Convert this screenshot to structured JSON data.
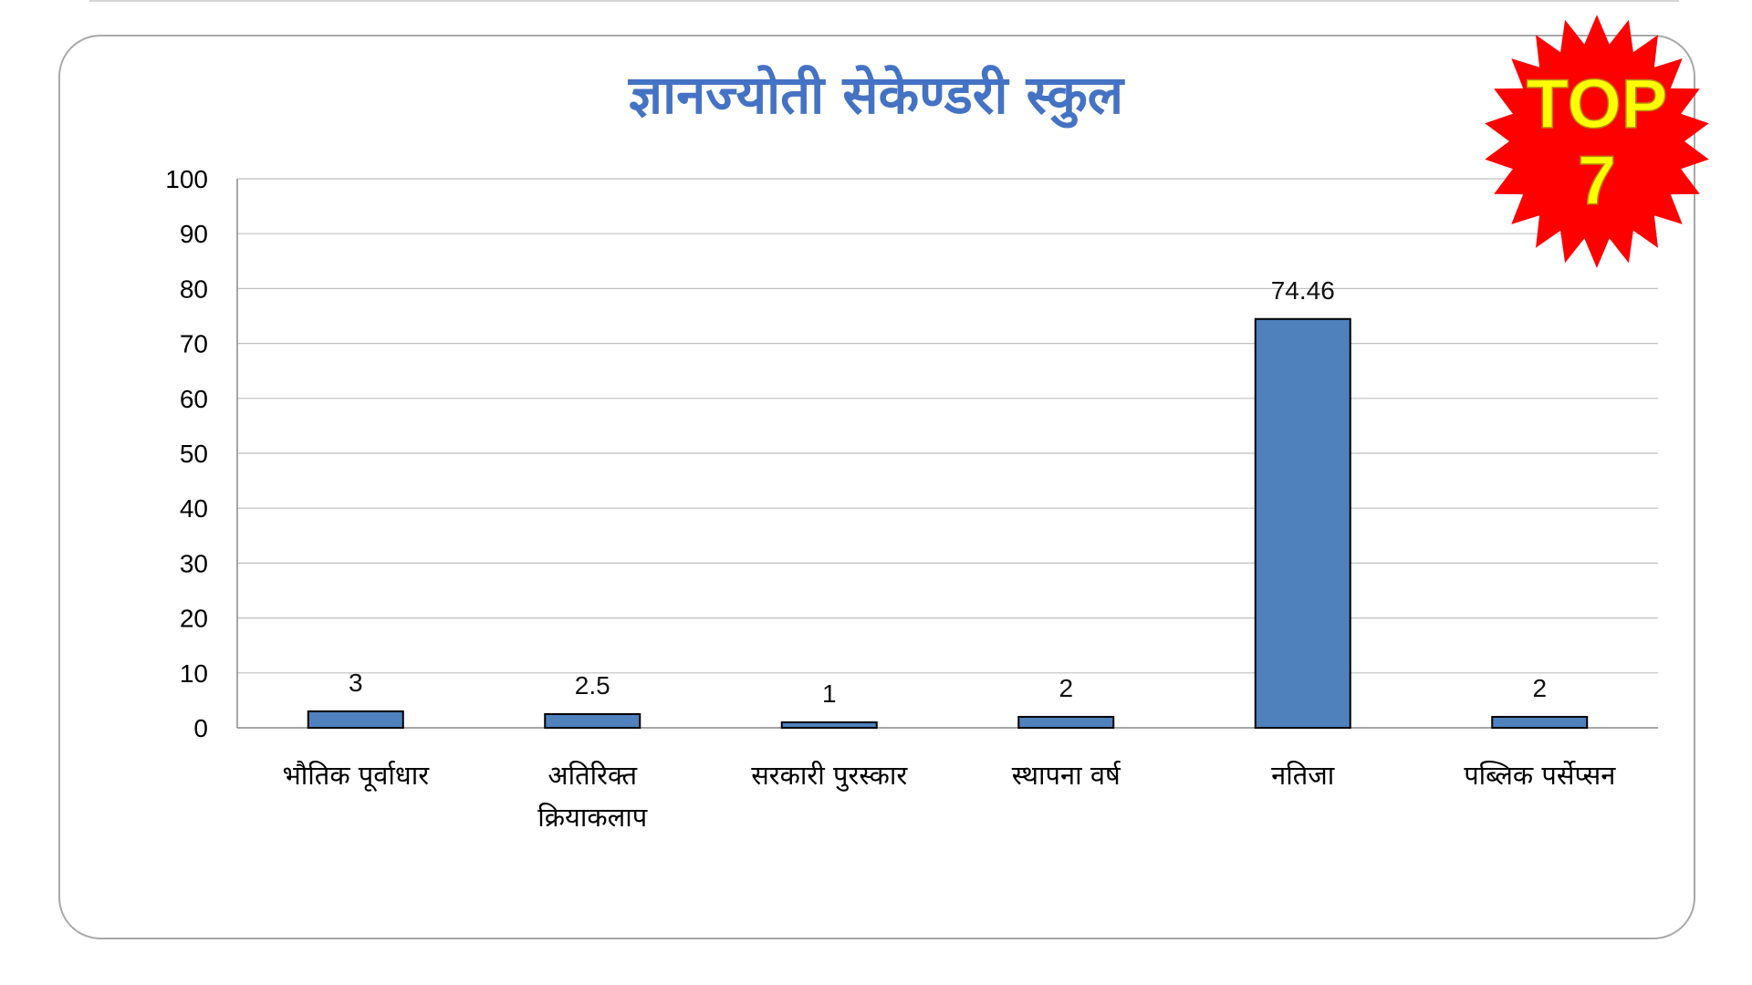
{
  "badge": {
    "line1": "TOP",
    "line2": "7",
    "fill_color": "#ff0000",
    "text_color": "#ffff00"
  },
  "chart_data": {
    "type": "bar",
    "title": "ज्ञानज्योती सेकेण्डरी स्कुल",
    "xlabel": "",
    "ylabel": "",
    "categories": [
      "भौतिक पूर्वाधार",
      "अतिरिक्त क्रियाकलाप",
      "सरकारी पुरस्कार",
      "स्थापना वर्ष",
      "नतिजा",
      "पब्लिक पर्सेप्सन"
    ],
    "category_lines": [
      [
        "भौतिक पूर्वाधार"
      ],
      [
        "अतिरिक्त",
        "क्रियाकलाप"
      ],
      [
        "सरकारी पुरस्कार"
      ],
      [
        "स्थापना वर्ष"
      ],
      [
        "नतिजा"
      ],
      [
        "पब्लिक पर्सेप्सन"
      ]
    ],
    "values": [
      3,
      2.5,
      1,
      2,
      74.46,
      2
    ],
    "data_labels": [
      "3",
      "2.5",
      "1",
      "2",
      "74.46",
      "2"
    ],
    "ylim": [
      0,
      100
    ],
    "yticks": [
      0,
      10,
      20,
      30,
      40,
      50,
      60,
      70,
      80,
      90,
      100
    ],
    "grid": true,
    "legend": "none",
    "bar_color": "#4f81bd",
    "bar_edge_color": "#000000",
    "title_color": "#4472c4"
  }
}
